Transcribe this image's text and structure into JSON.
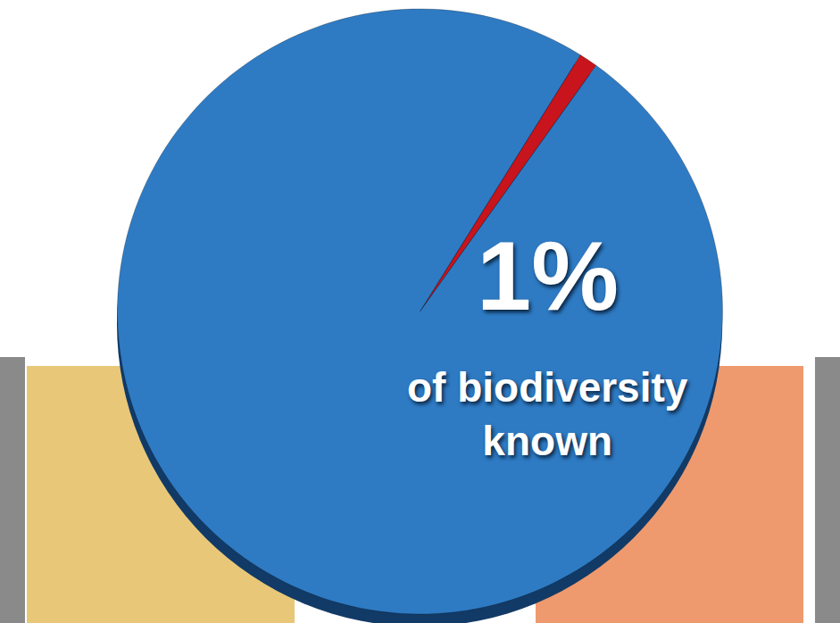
{
  "chart_data": {
    "type": "pie",
    "categories": [
      null,
      null
    ],
    "values": [
      1,
      99
    ],
    "colors": [
      "#c8141c",
      "#2e7bc4"
    ],
    "value_labels": [
      "1%",
      null
    ],
    "annotations": [
      "of biodiversity known"
    ],
    "data_labels": true
  }
}
